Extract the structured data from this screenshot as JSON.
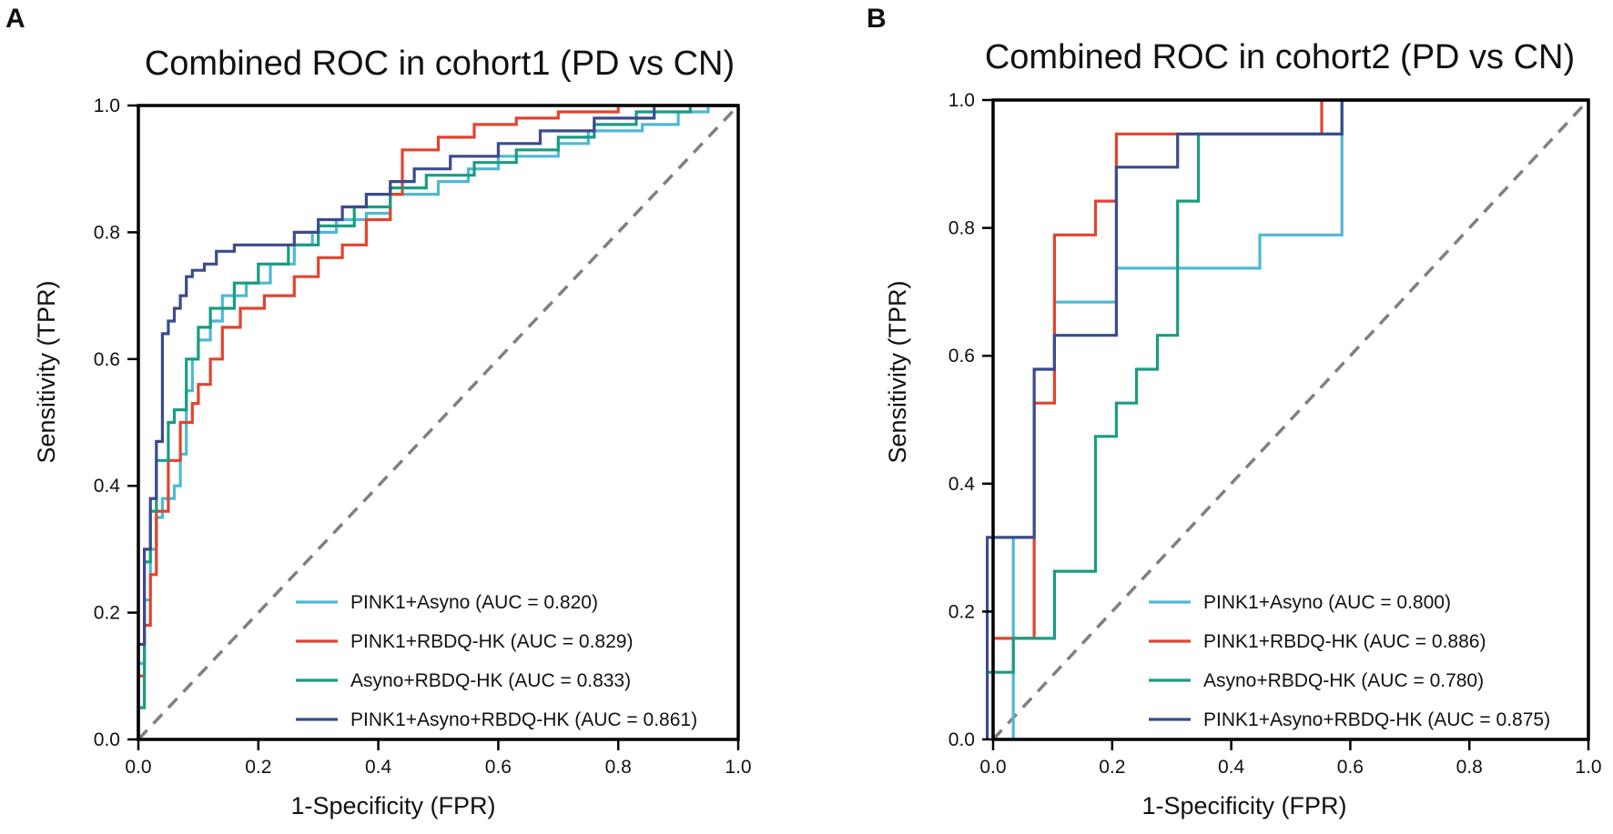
{
  "colors": {
    "pink1_asyno": "#4fb8d3",
    "pink1_rbdq": "#e0442f",
    "asyno_rbdq": "#1a9c82",
    "combined": "#3b4b8c",
    "diagonal": "#808080"
  },
  "chart_data": [
    {
      "panel": "A",
      "type": "line",
      "title": "Combined ROC in cohort1 (PD vs CN)",
      "xlabel": "1-Specificity (FPR)",
      "ylabel": "Sensitivity (TPR)",
      "xlim": [
        0,
        1
      ],
      "ylim": [
        0,
        1
      ],
      "xticks": [
        "0.0",
        "0.2",
        "0.4",
        "0.6",
        "0.8",
        "1.0"
      ],
      "yticks": [
        "0.0",
        "0.2",
        "0.4",
        "0.6",
        "0.8",
        "1.0"
      ],
      "legend_position": "bottom-right",
      "diagonal": true,
      "series": [
        {
          "name": "PINK1+Asyno (AUC = 0.820)",
          "color_key": "pink1_asyno",
          "x": [
            0,
            0,
            0.01,
            0.01,
            0.02,
            0.02,
            0.03,
            0.03,
            0.04,
            0.04,
            0.06,
            0.06,
            0.07,
            0.07,
            0.08,
            0.08,
            0.09,
            0.09,
            0.1,
            0.1,
            0.12,
            0.12,
            0.14,
            0.14,
            0.18,
            0.18,
            0.22,
            0.22,
            0.26,
            0.26,
            0.29,
            0.29,
            0.33,
            0.33,
            0.38,
            0.38,
            0.42,
            0.42,
            0.5,
            0.5,
            0.55,
            0.55,
            0.6,
            0.6,
            0.7,
            0.7,
            0.75,
            0.75,
            0.84,
            0.84,
            0.9,
            0.9,
            0.95,
            0.95,
            1
          ],
          "y": [
            0,
            0.12,
            0.12,
            0.22,
            0.22,
            0.3,
            0.3,
            0.35,
            0.35,
            0.38,
            0.38,
            0.4,
            0.4,
            0.45,
            0.45,
            0.55,
            0.55,
            0.6,
            0.6,
            0.63,
            0.63,
            0.66,
            0.66,
            0.7,
            0.7,
            0.72,
            0.72,
            0.75,
            0.75,
            0.78,
            0.78,
            0.8,
            0.8,
            0.82,
            0.82,
            0.83,
            0.83,
            0.86,
            0.86,
            0.88,
            0.88,
            0.9,
            0.9,
            0.92,
            0.92,
            0.94,
            0.94,
            0.96,
            0.96,
            0.97,
            0.97,
            0.99,
            0.99,
            1,
            1
          ]
        },
        {
          "name": "PINK1+RBDQ-HK (AUC = 0.829)",
          "color_key": "pink1_rbdq",
          "x": [
            0,
            0,
            0.01,
            0.01,
            0.02,
            0.02,
            0.03,
            0.03,
            0.05,
            0.05,
            0.07,
            0.07,
            0.09,
            0.09,
            0.1,
            0.1,
            0.12,
            0.12,
            0.14,
            0.14,
            0.17,
            0.17,
            0.21,
            0.21,
            0.26,
            0.26,
            0.3,
            0.3,
            0.34,
            0.34,
            0.38,
            0.38,
            0.42,
            0.42,
            0.44,
            0.44,
            0.5,
            0.5,
            0.56,
            0.56,
            0.63,
            0.63,
            0.7,
            0.7,
            0.75,
            0.75,
            0.8,
            0.8,
            0.84,
            0.84,
            1
          ],
          "y": [
            0,
            0.1,
            0.1,
            0.18,
            0.18,
            0.26,
            0.26,
            0.36,
            0.36,
            0.44,
            0.44,
            0.5,
            0.5,
            0.53,
            0.53,
            0.56,
            0.56,
            0.6,
            0.6,
            0.65,
            0.65,
            0.68,
            0.68,
            0.7,
            0.7,
            0.73,
            0.73,
            0.76,
            0.76,
            0.78,
            0.78,
            0.82,
            0.82,
            0.86,
            0.86,
            0.93,
            0.93,
            0.95,
            0.95,
            0.97,
            0.97,
            0.98,
            0.98,
            0.99,
            0.99,
            0.99,
            0.99,
            1,
            1,
            1,
            1
          ]
        },
        {
          "name": "Asyno+RBDQ-HK (AUC = 0.833)",
          "color_key": "asyno_rbdq",
          "x": [
            0,
            0,
            0.01,
            0.01,
            0.02,
            0.02,
            0.03,
            0.03,
            0.05,
            0.05,
            0.06,
            0.06,
            0.08,
            0.08,
            0.1,
            0.1,
            0.12,
            0.12,
            0.16,
            0.16,
            0.2,
            0.2,
            0.25,
            0.25,
            0.3,
            0.3,
            0.36,
            0.36,
            0.42,
            0.42,
            0.48,
            0.48,
            0.56,
            0.56,
            0.63,
            0.63,
            0.7,
            0.7,
            0.76,
            0.76,
            0.83,
            0.83,
            0.92,
            0.92,
            1
          ],
          "y": [
            0,
            0.05,
            0.05,
            0.28,
            0.28,
            0.36,
            0.36,
            0.44,
            0.44,
            0.5,
            0.5,
            0.52,
            0.52,
            0.6,
            0.6,
            0.65,
            0.65,
            0.68,
            0.68,
            0.72,
            0.72,
            0.75,
            0.75,
            0.78,
            0.78,
            0.81,
            0.81,
            0.84,
            0.84,
            0.87,
            0.87,
            0.89,
            0.89,
            0.91,
            0.91,
            0.93,
            0.93,
            0.95,
            0.95,
            0.97,
            0.97,
            0.99,
            0.99,
            1,
            1
          ]
        },
        {
          "name": "PINK1+Asyno+RBDQ-HK (AUC = 0.861)",
          "color_key": "combined",
          "x": [
            0,
            0,
            0.01,
            0.01,
            0.02,
            0.02,
            0.03,
            0.03,
            0.04,
            0.04,
            0.05,
            0.05,
            0.06,
            0.06,
            0.07,
            0.07,
            0.08,
            0.08,
            0.09,
            0.09,
            0.11,
            0.11,
            0.13,
            0.13,
            0.16,
            0.16,
            0.26,
            0.26,
            0.3,
            0.3,
            0.34,
            0.34,
            0.38,
            0.38,
            0.42,
            0.42,
            0.46,
            0.46,
            0.52,
            0.52,
            0.6,
            0.6,
            0.67,
            0.67,
            0.76,
            0.76,
            0.86,
            0.86,
            1
          ],
          "y": [
            0,
            0.15,
            0.15,
            0.3,
            0.3,
            0.38,
            0.38,
            0.47,
            0.47,
            0.64,
            0.64,
            0.66,
            0.66,
            0.68,
            0.68,
            0.7,
            0.7,
            0.73,
            0.73,
            0.74,
            0.74,
            0.75,
            0.75,
            0.77,
            0.77,
            0.78,
            0.78,
            0.8,
            0.8,
            0.82,
            0.82,
            0.84,
            0.84,
            0.86,
            0.86,
            0.88,
            0.88,
            0.9,
            0.9,
            0.92,
            0.92,
            0.94,
            0.94,
            0.96,
            0.96,
            0.98,
            0.98,
            1,
            1
          ]
        }
      ]
    },
    {
      "panel": "B",
      "type": "line",
      "title": "Combined ROC in cohort2 (PD vs CN)",
      "xlabel": "1-Specificity (FPR)",
      "ylabel": "Sensitivity (TPR)",
      "xlim": [
        0,
        1
      ],
      "ylim": [
        0,
        1
      ],
      "xticks": [
        "0.0",
        "0.2",
        "0.4",
        "0.6",
        "0.8",
        "1.0"
      ],
      "yticks": [
        "0.0",
        "0.2",
        "0.4",
        "0.6",
        "0.8",
        "1.0"
      ],
      "legend_position": "bottom-right",
      "diagonal": true,
      "series": [
        {
          "name": "PINK1+Asyno (AUC = 0.800)",
          "color_key": "pink1_asyno",
          "x": [
            0.034,
            0.034,
            0.034,
            0.069,
            0.069,
            0.103,
            0.103,
            0.207,
            0.207,
            0.448,
            0.448,
            0.586,
            0.586,
            1
          ],
          "y": [
            0,
            0.316,
            0.316,
            0.316,
            0.579,
            0.579,
            0.684,
            0.684,
            0.737,
            0.737,
            0.789,
            0.789,
            1,
            1
          ]
        },
        {
          "name": "PINK1+RBDQ-HK (AUC = 0.886)",
          "color_key": "pink1_rbdq",
          "x": [
            0,
            0,
            0.069,
            0.069,
            0.103,
            0.103,
            0.138,
            0.138,
            0.172,
            0.172,
            0.207,
            0.207,
            0.552,
            0.552,
            0.586,
            1
          ],
          "y": [
            0,
            0.158,
            0.158,
            0.526,
            0.526,
            0.789,
            0.789,
            0.789,
            0.789,
            0.842,
            0.842,
            0.947,
            0.947,
            1,
            1,
            1
          ]
        },
        {
          "name": "Asyno+RBDQ-HK (AUC = 0.780)",
          "color_key": "asyno_rbdq",
          "x": [
            -0.01,
            -0.01,
            0.034,
            0.034,
            0.103,
            0.103,
            0.172,
            0.172,
            0.207,
            0.207,
            0.241,
            0.241,
            0.276,
            0.276,
            0.31,
            0.31,
            0.345,
            0.345,
            0.586,
            0.586,
            1
          ],
          "y": [
            0,
            0.105,
            0.105,
            0.158,
            0.158,
            0.263,
            0.263,
            0.474,
            0.474,
            0.526,
            0.526,
            0.579,
            0.579,
            0.632,
            0.632,
            0.842,
            0.842,
            0.947,
            0.947,
            1,
            1
          ]
        },
        {
          "name": "PINK1+Asyno+RBDQ-HK (AUC = 0.875)",
          "color_key": "combined",
          "x": [
            -0.01,
            -0.01,
            0.069,
            0.069,
            0.103,
            0.103,
            0.207,
            0.207,
            0.31,
            0.31,
            0.586,
            0.586,
            1
          ],
          "y": [
            0,
            0.316,
            0.316,
            0.579,
            0.579,
            0.632,
            0.632,
            0.895,
            0.895,
            0.947,
            0.947,
            1,
            1
          ]
        }
      ]
    }
  ]
}
